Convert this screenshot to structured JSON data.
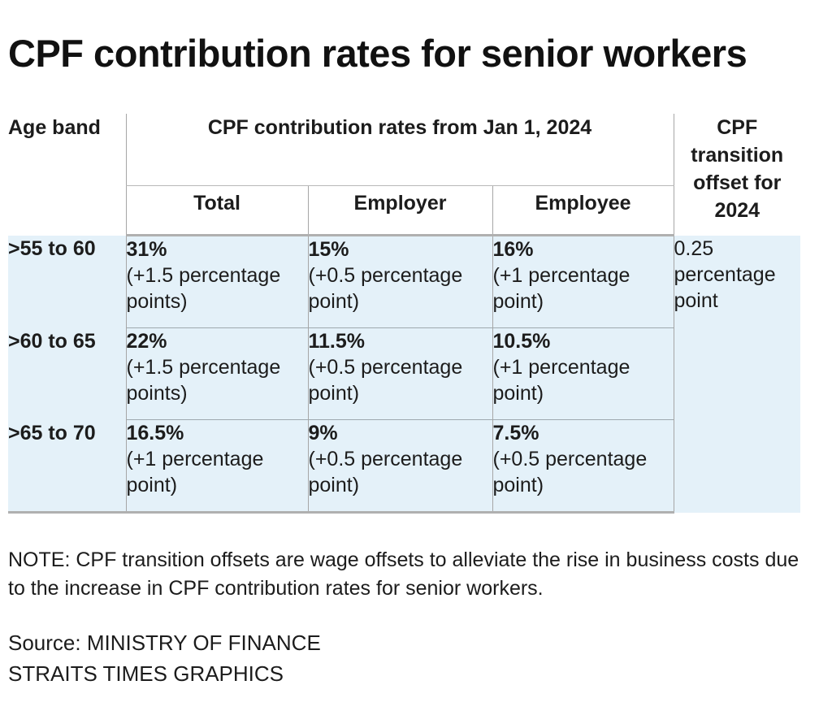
{
  "title": "CPF contribution rates for senior workers",
  "chart_data": {
    "type": "table",
    "header": {
      "age_band": "Age band",
      "group": "CPF contribution rates from Jan 1, 2024",
      "total": "Total",
      "employer": "Employer",
      "employee": "Employee",
      "offset": "CPF transition offset for 2024"
    },
    "rows": [
      {
        "age": ">55 to 60",
        "total": "31%",
        "total_change": "(+1.5 percentage points)",
        "employer": "15%",
        "employer_change": "(+0.5 percentage point)",
        "employee": "16%",
        "employee_change": "(+1 percentage point)"
      },
      {
        "age": ">60 to 65",
        "total": "22%",
        "total_change": "(+1.5 percentage points)",
        "employer": "11.5%",
        "employer_change": "(+0.5 percentage point)",
        "employee": "10.5%",
        "employee_change": "(+1 percentage point)"
      },
      {
        "age": ">65 to 70",
        "total": "16.5%",
        "total_change": "(+1 percentage point)",
        "employer": "9%",
        "employer_change": "(+0.5 percentage point)",
        "employee": "7.5%",
        "employee_change": "(+0.5 percentage point)"
      }
    ],
    "offset_value": "0.25 percentage point"
  },
  "note": "NOTE: CPF transition offsets are wage offsets to alleviate the rise in business costs due to the increase in CPF contribution rates for senior workers.",
  "source": "Source: MINISTRY OF FINANCE",
  "credit": "STRAITS TIMES GRAPHICS",
  "colors": {
    "row_background": "#e4f1f9",
    "rule": "#b0b0b0"
  }
}
